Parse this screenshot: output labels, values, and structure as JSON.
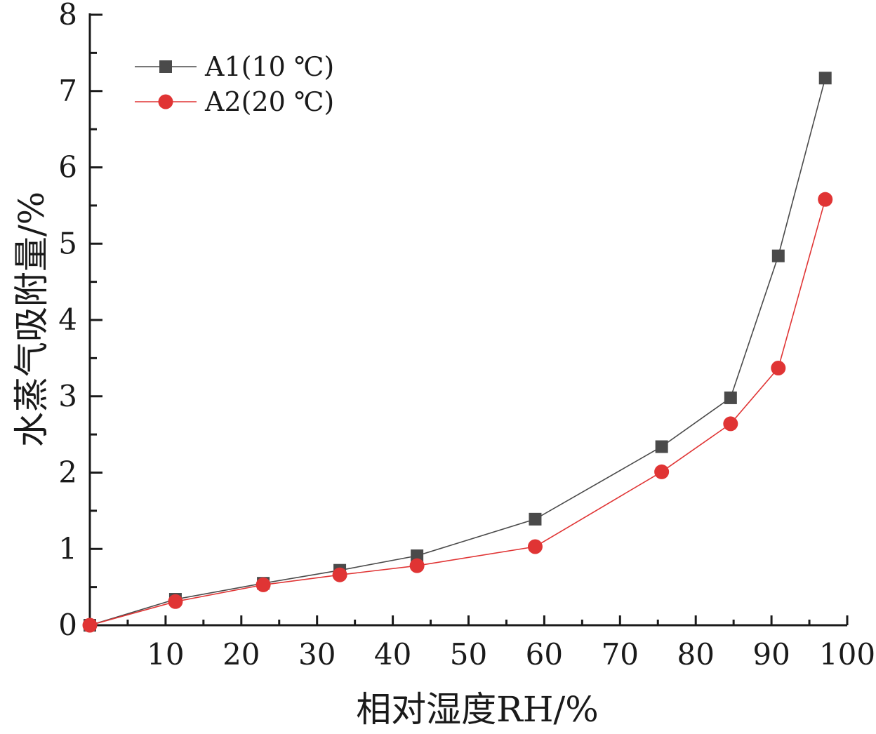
{
  "chart_data": {
    "type": "line",
    "xlabel": "相对湿度RH/%",
    "ylabel": "水蒸气吸附量/%",
    "xlim": [
      0,
      100
    ],
    "ylim": [
      0,
      8
    ],
    "x_ticks": [
      10,
      20,
      30,
      40,
      50,
      60,
      70,
      80,
      90,
      100
    ],
    "y_ticks": [
      0,
      1,
      2,
      3,
      4,
      5,
      6,
      7,
      8
    ],
    "legend_position": "top-left",
    "grid": false,
    "series": [
      {
        "name": "A1(10 ℃)",
        "color": "#4a4a4a",
        "marker": "square",
        "x": [
          0,
          11.3,
          22.9,
          33.0,
          43.2,
          58.8,
          75.5,
          84.6,
          90.9,
          97.1
        ],
        "y": [
          0,
          0.34,
          0.55,
          0.72,
          0.91,
          1.39,
          2.34,
          2.98,
          4.84,
          7.17
        ]
      },
      {
        "name": "A2(20 ℃)",
        "color": "#e03434",
        "marker": "circle",
        "x": [
          0,
          11.3,
          22.9,
          33.0,
          43.2,
          58.8,
          75.5,
          84.6,
          90.9,
          97.1
        ],
        "y": [
          0,
          0.31,
          0.53,
          0.66,
          0.78,
          1.03,
          2.01,
          2.64,
          3.37,
          5.58
        ]
      }
    ]
  }
}
